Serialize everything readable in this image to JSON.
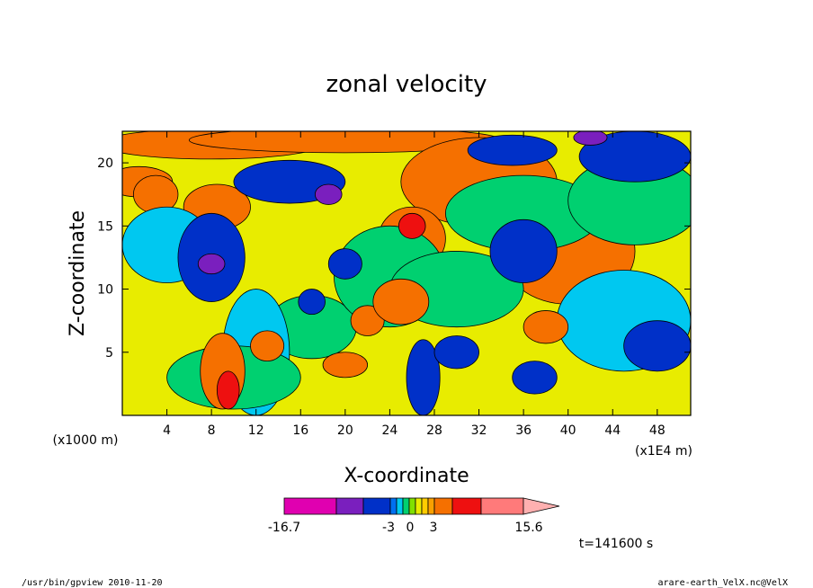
{
  "chart_data": {
    "type": "heatmap",
    "title": "zonal velocity",
    "xlabel": "X-coordinate",
    "ylabel": "Z-coordinate",
    "x_scale_label": "(x1E4 m)",
    "y_scale_label": "(x1000 m)",
    "x_ticks": [
      "4",
      "8",
      "12",
      "16",
      "20",
      "24",
      "28",
      "32",
      "36",
      "40",
      "44",
      "48"
    ],
    "y_ticks": [
      "5",
      "10",
      "15",
      "20"
    ],
    "xlim": [
      0,
      51
    ],
    "ylim": [
      0,
      22.5
    ],
    "colorbar": {
      "labels": [
        "-16.7",
        "-3",
        "0",
        "3",
        "15.6"
      ],
      "colors": [
        "#e000b0",
        "#7a1fbe",
        "#0030c8",
        "#0070f0",
        "#00c8f0",
        "#00d070",
        "#80e000",
        "#e8ec00",
        "#ffcc00",
        "#f9a000",
        "#f57000",
        "#ee1010",
        "#ff7a7a",
        "#ffb0b0"
      ]
    },
    "time_label": "t=141600 s"
  },
  "footer": {
    "left": "/usr/bin/gpview   2010-11-20",
    "right": "arare-earth_VelX.nc@VelX"
  }
}
